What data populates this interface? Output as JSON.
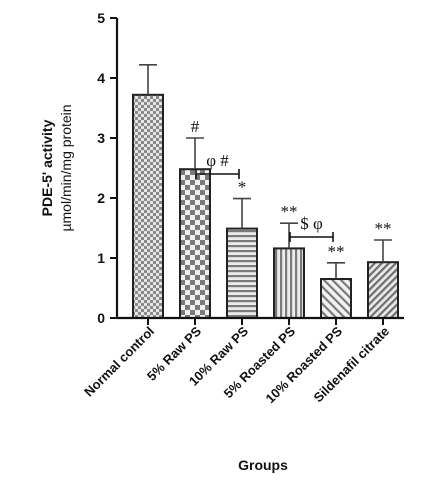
{
  "chart_data": {
    "type": "bar",
    "xlabel": "Groups",
    "ylabel_line1": "PDE-5' activity",
    "ylabel_line2": "µmol/min/mg protein",
    "ylim": [
      0,
      5
    ],
    "yticks": [
      0,
      1,
      2,
      3,
      4,
      5
    ],
    "grid": false,
    "categories": [
      "Normal control",
      "5% Raw PS",
      "10% Raw PS",
      "5% Roasted PS",
      "10% Roasted PS",
      "Sildenafil citrate"
    ],
    "values": [
      3.72,
      2.48,
      1.49,
      1.16,
      0.65,
      0.93
    ],
    "errors": [
      0.5,
      0.52,
      0.5,
      0.42,
      0.27,
      0.37
    ],
    "patterns": [
      "checker-fine",
      "checker-coarse",
      "horizontal-lines",
      "vertical-lines",
      "diagonal-lines",
      "diagonal-lines-dense"
    ],
    "annotations": [
      "",
      "#",
      "*",
      "**",
      "**",
      "**"
    ],
    "brackets": [
      {
        "from": 1,
        "to": 2,
        "label": "φ #",
        "y": 2.4
      },
      {
        "from": 3,
        "to": 4,
        "label": "$ φ",
        "y": 1.35
      }
    ]
  },
  "colors": {
    "bar_fill": "#8c8c8c",
    "pattern_ink": "#555555",
    "axis": "#111111"
  }
}
